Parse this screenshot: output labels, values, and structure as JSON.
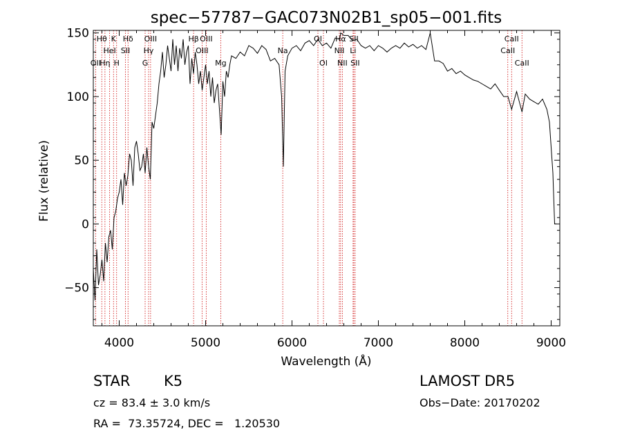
{
  "chart_data": {
    "type": "line",
    "title": "spec−57787−GAC073N02B1_sp05−001.fits",
    "xlabel": "Wavelength (Å)",
    "ylabel": "Flux (relative)",
    "xlim": [
      3700,
      9100
    ],
    "ylim": [
      -80,
      152
    ],
    "x_ticks": [
      4000,
      5000,
      6000,
      7000,
      8000,
      9000
    ],
    "x_tick_labels": [
      "4000",
      "5000",
      "6000",
      "7000",
      "8000",
      "9000"
    ],
    "y_ticks": [
      -50,
      0,
      50,
      100,
      150
    ],
    "y_tick_labels": [
      "−50",
      "0",
      "50",
      "100",
      "150"
    ],
    "grid": false,
    "line_color": "#000000",
    "marker_color": "#cc0000",
    "series": [
      {
        "x": [
          3700,
          3720,
          3740,
          3760,
          3780,
          3800,
          3820,
          3840,
          3860,
          3880,
          3900,
          3920,
          3940,
          3960,
          3980,
          4000,
          4020,
          4040,
          4060,
          4080,
          4100,
          4120,
          4140,
          4160,
          4180,
          4200,
          4220,
          4240,
          4260,
          4280,
          4300,
          4320,
          4340,
          4360,
          4380,
          4400,
          4420,
          4440,
          4460,
          4480,
          4500,
          4520,
          4540,
          4560,
          4580,
          4600,
          4620,
          4640,
          4660,
          4680,
          4700,
          4720,
          4740,
          4760,
          4780,
          4800,
          4820,
          4840,
          4860,
          4880,
          4900,
          4920,
          4940,
          4960,
          4980,
          5000,
          5020,
          5040,
          5060,
          5080,
          5100,
          5120,
          5140,
          5160,
          5180,
          5200,
          5220,
          5240,
          5260,
          5280,
          5300,
          5350,
          5400,
          5450,
          5500,
          5550,
          5600,
          5650,
          5700,
          5750,
          5800,
          5850,
          5880,
          5900,
          5920,
          5950,
          6000,
          6050,
          6100,
          6150,
          6200,
          6250,
          6300,
          6350,
          6400,
          6450,
          6500,
          6550,
          6563,
          6600,
          6650,
          6700,
          6750,
          6800,
          6850,
          6900,
          6950,
          7000,
          7050,
          7100,
          7150,
          7200,
          7250,
          7300,
          7350,
          7400,
          7450,
          7500,
          7550,
          7600,
          7650,
          7700,
          7750,
          7800,
          7850,
          7900,
          7950,
          8000,
          8050,
          8100,
          8150,
          8200,
          8250,
          8300,
          8350,
          8400,
          8450,
          8500,
          8542,
          8600,
          8662,
          8700,
          8750,
          8800,
          8850,
          8900,
          8950,
          8980,
          9000,
          9020,
          9040,
          9060
        ],
        "y": [
          -35,
          -60,
          -20,
          -48,
          -40,
          -28,
          -45,
          -15,
          -30,
          -10,
          -5,
          -20,
          5,
          10,
          20,
          25,
          35,
          15,
          40,
          30,
          38,
          55,
          50,
          30,
          60,
          65,
          55,
          42,
          45,
          55,
          40,
          60,
          45,
          35,
          80,
          75,
          85,
          95,
          110,
          120,
          135,
          115,
          125,
          140,
          130,
          120,
          145,
          125,
          140,
          120,
          138,
          130,
          145,
          125,
          135,
          140,
          110,
          130,
          118,
          135,
          125,
          110,
          120,
          105,
          115,
          125,
          110,
          120,
          100,
          115,
          95,
          105,
          110,
          90,
          70,
          112,
          100,
          120,
          115,
          125,
          132,
          130,
          135,
          132,
          140,
          138,
          134,
          140,
          137,
          128,
          130,
          125,
          100,
          45,
          120,
          132,
          138,
          140,
          136,
          142,
          144,
          140,
          145,
          140,
          142,
          138,
          146,
          145,
          150,
          148,
          148,
          144,
          145,
          140,
          138,
          140,
          136,
          140,
          138,
          135,
          138,
          140,
          138,
          142,
          139,
          141,
          138,
          140,
          137,
          150,
          128,
          128,
          126,
          120,
          122,
          118,
          120,
          117,
          115,
          113,
          112,
          110,
          108,
          106,
          110,
          105,
          100,
          100,
          90,
          104,
          88,
          102,
          98,
          96,
          94,
          98,
          90,
          80,
          60,
          40,
          0,
          0
        ]
      }
    ],
    "line_markers": [
      {
        "wavelength": 3727,
        "label": "OII",
        "row": 3
      },
      {
        "wavelength": 3798,
        "label": "Hθ",
        "row": 1
      },
      {
        "wavelength": 3835,
        "label": "Hη",
        "row": 3
      },
      {
        "wavelength": 3889,
        "label": "HeI",
        "row": 2
      },
      {
        "wavelength": 3934,
        "label": "K",
        "row": 1
      },
      {
        "wavelength": 3970,
        "label": "H",
        "row": 3
      },
      {
        "wavelength": 4072,
        "label": "SII",
        "row": 2
      },
      {
        "wavelength": 4102,
        "label": "Hδ",
        "row": 1
      },
      {
        "wavelength": 4300,
        "label": "G",
        "row": 3
      },
      {
        "wavelength": 4340,
        "label": "Hγ",
        "row": 2
      },
      {
        "wavelength": 4363,
        "label": "OIII",
        "row": 1
      },
      {
        "wavelength": 4861,
        "label": "Hβ",
        "row": 1
      },
      {
        "wavelength": 4959,
        "label": "OIII",
        "row": 2
      },
      {
        "wavelength": 5007,
        "label": "OIII",
        "row": 1
      },
      {
        "wavelength": 5175,
        "label": "Mg",
        "row": 3
      },
      {
        "wavelength": 5893,
        "label": "Na",
        "row": 2
      },
      {
        "wavelength": 6300,
        "label": "OI",
        "row": 1
      },
      {
        "wavelength": 6364,
        "label": "OI",
        "row": 3
      },
      {
        "wavelength": 6548,
        "label": "NII",
        "row": 2
      },
      {
        "wavelength": 6563,
        "label": "Hα",
        "row": 1
      },
      {
        "wavelength": 6583,
        "label": "NII",
        "row": 3
      },
      {
        "wavelength": 6707,
        "label": "Li",
        "row": 2
      },
      {
        "wavelength": 6716,
        "label": "SII",
        "row": 1
      },
      {
        "wavelength": 6731,
        "label": "SII",
        "row": 3
      },
      {
        "wavelength": 8498,
        "label": "CaII",
        "row": 2
      },
      {
        "wavelength": 8542,
        "label": "CaII",
        "row": 1
      },
      {
        "wavelength": 8662,
        "label": "CaII",
        "row": 3
      }
    ]
  },
  "info": {
    "class": "STAR",
    "subclass": "K5",
    "survey": "LAMOST DR5",
    "cz": "cz = 83.4 ± 3.0 km/s",
    "obs_date": "Obs−Date: 20170202",
    "coords": "RA =  73.35724, DEC =   1.20530"
  }
}
